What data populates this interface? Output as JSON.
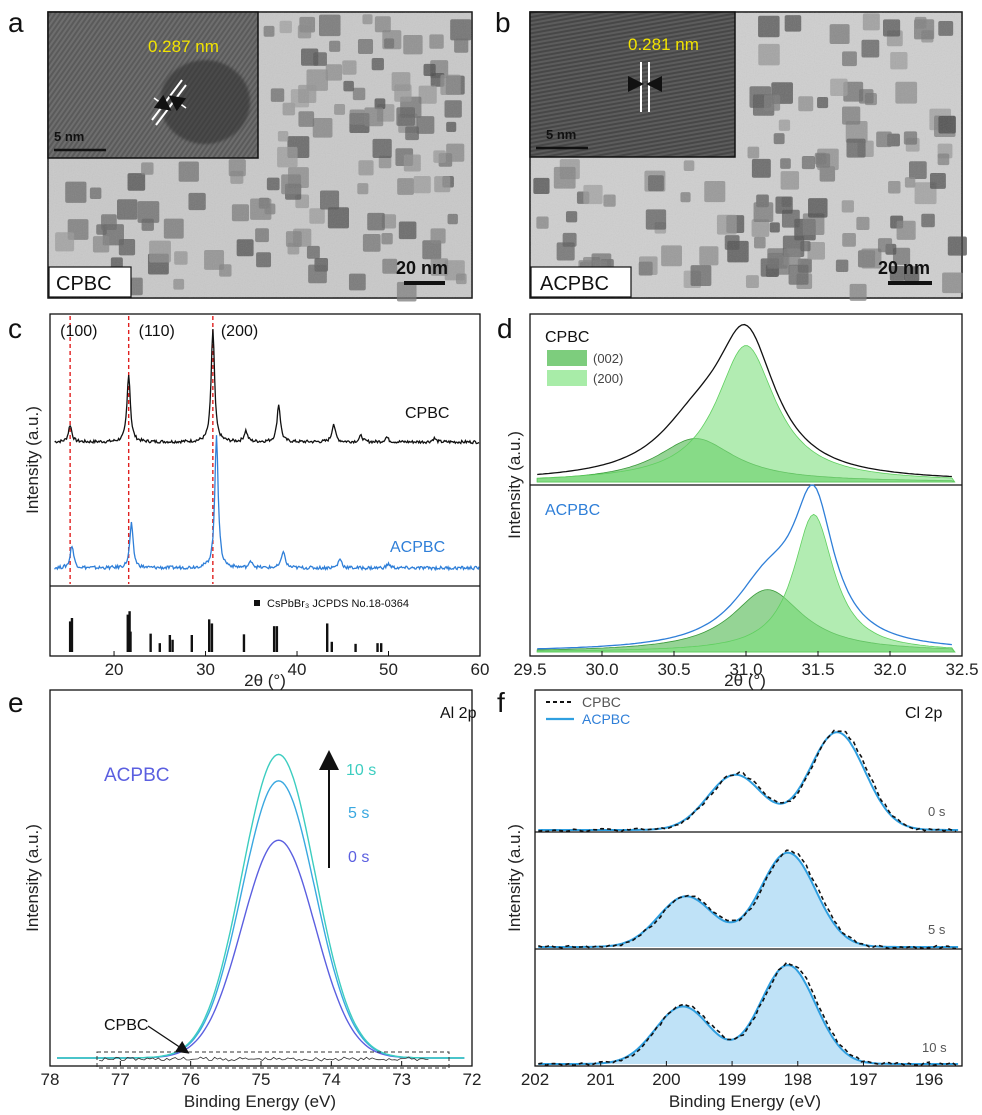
{
  "panel_labels": [
    "a",
    "b",
    "c",
    "d",
    "e",
    "f"
  ],
  "colors": {
    "cpbc": "#111111",
    "acpbc": "#2f7fd8",
    "ref_line": "#e0201f",
    "fit_dark": "#3fbf3f",
    "fit_light": "#8fe68f",
    "al_0s": "#5b5fe0",
    "al_5s": "#3aa8e0",
    "al_10s": "#3ccdc0",
    "cl_fill": "#bfe2f7",
    "inset_text": "#f2e300"
  },
  "tem": [
    {
      "id": "a",
      "sample": "CPBC",
      "lattice": "0.287 nm",
      "inset_scale": "5 nm",
      "scale": "20 nm"
    },
    {
      "id": "b",
      "sample": "ACPBC",
      "lattice": "0.281 nm",
      "inset_scale": "5 nm",
      "scale": "20 nm"
    }
  ],
  "chart_data": [
    {
      "panel": "c",
      "type": "line",
      "xlabel": "2θ (°)",
      "ylabel": "Intensity (a.u.)",
      "xlim": [
        13,
        60
      ],
      "xticks": [
        20,
        30,
        40,
        50,
        60
      ],
      "peak_labels": [
        {
          "text": "(100)",
          "x": 15.2
        },
        {
          "text": "(110)",
          "x": 21.6
        },
        {
          "text": "(200)",
          "x": 30.8
        }
      ],
      "series": [
        {
          "name": "CPBC",
          "peaks": [
            [
              15.2,
              0.14
            ],
            [
              21.6,
              0.56
            ],
            [
              30.8,
              0.92
            ],
            [
              34.4,
              0.09
            ],
            [
              38.0,
              0.31
            ],
            [
              44.0,
              0.15
            ],
            [
              47.0,
              0.05
            ],
            [
              49.8,
              0.04
            ],
            [
              55.0,
              0.03
            ]
          ]
        },
        {
          "name": "ACPBC",
          "peaks": [
            [
              15.4,
              0.17
            ],
            [
              21.9,
              0.33
            ],
            [
              31.2,
              1.0
            ],
            [
              35.0,
              0.05
            ],
            [
              38.5,
              0.13
            ],
            [
              44.7,
              0.07
            ],
            [
              50.0,
              0.03
            ]
          ]
        }
      ],
      "reference": {
        "name": "CsPbBr₃ JCPDS No.18-0364",
        "sticks": [
          [
            15.2,
            0.45
          ],
          [
            15.4,
            0.5
          ],
          [
            21.5,
            0.55
          ],
          [
            21.7,
            0.6
          ],
          [
            21.8,
            0.3
          ],
          [
            24.0,
            0.27
          ],
          [
            25.0,
            0.13
          ],
          [
            26.1,
            0.25
          ],
          [
            26.4,
            0.18
          ],
          [
            28.5,
            0.25
          ],
          [
            30.4,
            0.48
          ],
          [
            30.7,
            0.42
          ],
          [
            34.2,
            0.26
          ],
          [
            37.5,
            0.38
          ],
          [
            37.8,
            0.38
          ],
          [
            43.3,
            0.42
          ],
          [
            43.8,
            0.15
          ],
          [
            46.4,
            0.12
          ],
          [
            48.8,
            0.13
          ],
          [
            49.2,
            0.13
          ]
        ]
      }
    },
    {
      "panel": "d",
      "type": "area",
      "xlabel": "2θ (°)",
      "ylabel": "Intensity (a.u.)",
      "xlim": [
        29.5,
        32.5
      ],
      "xticks": [
        29.5,
        30.0,
        30.5,
        31.0,
        31.5,
        32.0,
        32.5
      ],
      "legend": [
        "(002)",
        "(200)"
      ],
      "subplots": [
        {
          "name": "CPBC",
          "peaks": [
            {
              "label": "(002)",
              "center": 30.65,
              "amp": 0.29,
              "width": 0.33
            },
            {
              "label": "(200)",
              "center": 31.0,
              "amp": 0.91,
              "width": 0.25
            }
          ]
        },
        {
          "name": "ACPBC",
          "peaks": [
            {
              "label": "(002)",
              "center": 31.15,
              "amp": 0.39,
              "width": 0.3
            },
            {
              "label": "(200)",
              "center": 31.47,
              "amp": 0.86,
              "width": 0.17
            }
          ]
        }
      ]
    },
    {
      "panel": "e",
      "type": "line",
      "title": "Al 2p",
      "xlabel": "Binding Energy (eV)",
      "ylabel": "Intensity (a.u.)",
      "xlim": [
        78,
        72
      ],
      "xticks": [
        78,
        77,
        76,
        75,
        74,
        73,
        72
      ],
      "sample_label": "ACPBC",
      "trend_labels": [
        "10 s",
        "5 s",
        "0 s"
      ],
      "arrow_note": "CPBC",
      "series": [
        {
          "name": "0 s",
          "center": 74.75,
          "amp": 0.66
        },
        {
          "name": "5 s",
          "center": 74.75,
          "amp": 0.84
        },
        {
          "name": "10 s",
          "center": 74.75,
          "amp": 0.92
        }
      ],
      "peak_width": 0.52
    },
    {
      "panel": "f",
      "type": "line",
      "title": "Cl 2p",
      "xlabel": "Binding Energy (eV)",
      "ylabel": "Intensity (a.u.)",
      "xlim": [
        202,
        195.5
      ],
      "xticks": [
        202,
        201,
        200,
        199,
        198,
        197,
        196
      ],
      "legend": [
        "CPBC",
        "ACPBC"
      ],
      "subplots": [
        {
          "time": "0 s",
          "peaks": [
            [
              198.95,
              0.48
            ],
            [
              197.4,
              0.85
            ]
          ],
          "filled": false
        },
        {
          "time": "5 s",
          "peaks": [
            [
              199.7,
              0.44
            ],
            [
              198.15,
              0.82
            ]
          ],
          "filled": true
        },
        {
          "time": "10 s",
          "peaks": [
            [
              199.75,
              0.5
            ],
            [
              198.15,
              0.86
            ]
          ],
          "filled": true
        }
      ]
    }
  ]
}
